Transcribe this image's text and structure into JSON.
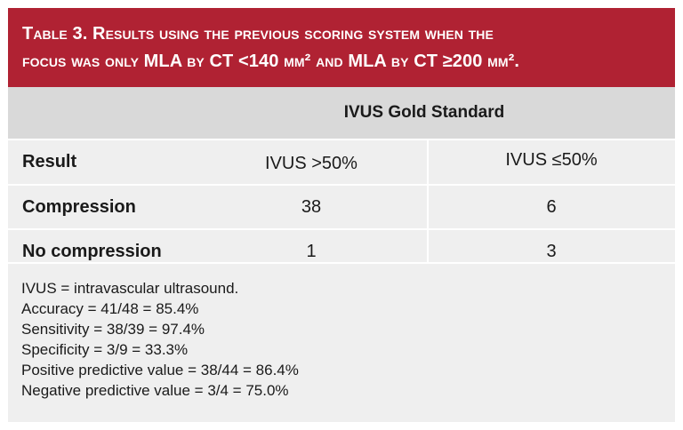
{
  "caption": {
    "line1": "Table 3. Results using the previous scoring system when the",
    "line2": "focus was only MLA by CT <140 mm² and MLA by CT ≥200 mm²."
  },
  "group_header": "IVUS Gold Standard",
  "columns": [
    "Result",
    "IVUS >50%",
    "IVUS ≤50%"
  ],
  "rows": [
    {
      "label": "Compression",
      "ivus_gt50": "38",
      "ivus_le50": "6"
    },
    {
      "label": "No compression",
      "ivus_gt50": "1",
      "ivus_le50": "3"
    }
  ],
  "notes": [
    "IVUS = intravascular ultrasound.",
    "Accuracy = 41/48 = 85.4%",
    "Sensitivity = 38/39 = 97.4%",
    "Specificity = 3/9 = 33.3%",
    "Positive predictive value = 38/44 = 86.4%",
    "Negative predictive value = 3/4 = 75.0%"
  ],
  "colors": {
    "caption_background": "#b02233",
    "header_background": "#d9d9d9",
    "body_background": "#efefef"
  }
}
